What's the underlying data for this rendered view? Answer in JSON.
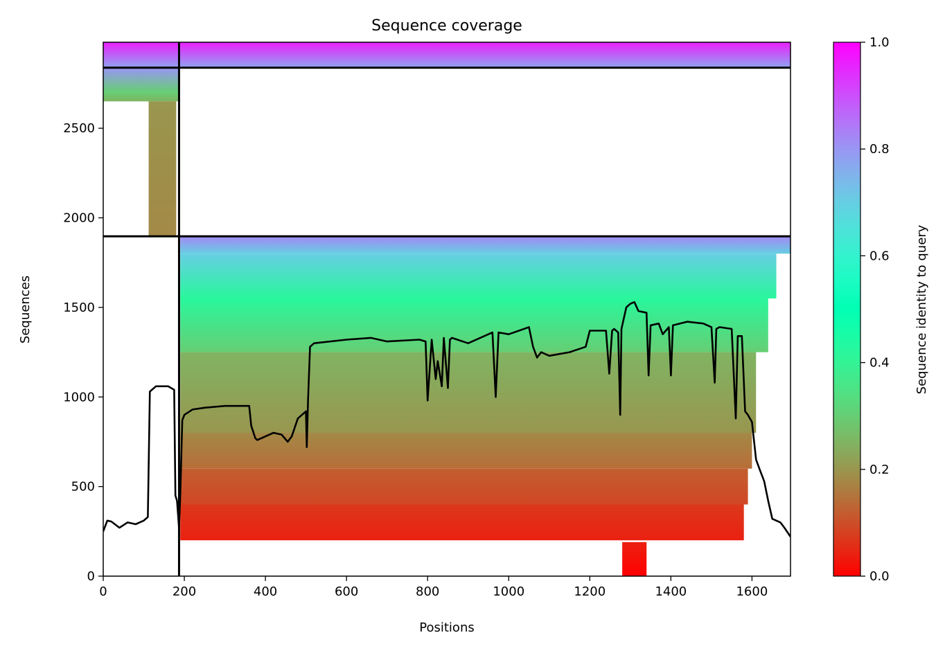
{
  "chart_data": {
    "type": "heatmap",
    "title": "Sequence coverage",
    "xlabel": "Positions",
    "ylabel": "Sequences",
    "xlim": [
      0,
      1695
    ],
    "ylim": [
      0,
      2980
    ],
    "x_ticks": [
      0,
      200,
      400,
      600,
      800,
      1000,
      1200,
      1400,
      1600
    ],
    "y_ticks": [
      0,
      500,
      1000,
      1500,
      2000,
      2500
    ],
    "colorbar": {
      "label": "Sequence identity to query",
      "range": [
        0,
        1
      ],
      "ticks": [
        0.0,
        0.2,
        0.4,
        0.6,
        0.8,
        1.0
      ],
      "colormap": "rainbow_r",
      "colors": [
        "#ff0000",
        "#ff8040",
        "#c0ff80",
        "#40ffbf",
        "#00b3f3",
        "#8000ff"
      ]
    },
    "chain_boundaries": {
      "vertical_x": [
        187
      ],
      "horizontal_y": [
        1897,
        2838
      ]
    },
    "coverage_blocks": [
      {
        "x0": 0,
        "x1": 1695,
        "y0": 2838,
        "y1": 2980,
        "identity_top": 0.96,
        "identity_bottom": 0.78
      },
      {
        "x0": 0,
        "x1": 187,
        "y0": 2700,
        "y1": 2838,
        "identity_top": 0.8,
        "identity_bottom": 0.3
      },
      {
        "x0": 0,
        "x1": 187,
        "y0": 2650,
        "y1": 2700,
        "identity_top": 0.3,
        "identity_bottom": 0.25
      },
      {
        "x0": 112,
        "x1": 180,
        "y0": 1897,
        "y1": 2650,
        "identity_top": 0.2,
        "identity_bottom": 0.18
      },
      {
        "x0": 190,
        "x1": 1695,
        "y0": 1800,
        "y1": 1897,
        "identity_top": 0.82,
        "identity_bottom": 0.7
      },
      {
        "x0": 190,
        "x1": 1660,
        "y0": 1550,
        "y1": 1800,
        "identity_top": 0.7,
        "identity_bottom": 0.42
      },
      {
        "x0": 190,
        "x1": 1640,
        "y0": 1250,
        "y1": 1550,
        "identity_top": 0.42,
        "identity_bottom": 0.3
      },
      {
        "x0": 190,
        "x1": 1610,
        "y0": 800,
        "y1": 1250,
        "identity_top": 0.25,
        "identity_bottom": 0.2
      },
      {
        "x0": 190,
        "x1": 1600,
        "y0": 600,
        "y1": 800,
        "identity_top": 0.18,
        "identity_bottom": 0.14
      },
      {
        "x0": 190,
        "x1": 1590,
        "y0": 400,
        "y1": 600,
        "identity_top": 0.12,
        "identity_bottom": 0.09
      },
      {
        "x0": 190,
        "x1": 1580,
        "y0": 200,
        "y1": 400,
        "identity_top": 0.07,
        "identity_bottom": 0.04
      },
      {
        "x0": 1280,
        "x1": 1340,
        "y0": 0,
        "y1": 190,
        "identity_top": 0.04,
        "identity_bottom": 0.0
      }
    ],
    "coverage_line": {
      "x": [
        0,
        10,
        20,
        40,
        60,
        80,
        100,
        110,
        115,
        130,
        160,
        175,
        178,
        182,
        187,
        190,
        195,
        200,
        220,
        250,
        300,
        360,
        365,
        375,
        380,
        400,
        420,
        440,
        455,
        465,
        480,
        500,
        502,
        505,
        510,
        520,
        600,
        660,
        700,
        780,
        795,
        800,
        810,
        820,
        825,
        835,
        840,
        850,
        855,
        860,
        900,
        960,
        968,
        975,
        1000,
        1050,
        1060,
        1070,
        1080,
        1100,
        1150,
        1190,
        1200,
        1240,
        1248,
        1255,
        1260,
        1270,
        1275,
        1278,
        1290,
        1300,
        1310,
        1320,
        1340,
        1345,
        1350,
        1370,
        1380,
        1395,
        1400,
        1405,
        1440,
        1480,
        1500,
        1508,
        1512,
        1520,
        1550,
        1560,
        1565,
        1575,
        1583,
        1590,
        1600,
        1610,
        1620,
        1630,
        1640,
        1650,
        1660,
        1670,
        1680,
        1695
      ],
      "y": [
        250,
        310,
        305,
        270,
        300,
        290,
        310,
        330,
        1030,
        1060,
        1060,
        1040,
        450,
        420,
        270,
        450,
        870,
        900,
        930,
        940,
        950,
        950,
        840,
        770,
        760,
        780,
        800,
        790,
        750,
        780,
        880,
        920,
        720,
        980,
        1280,
        1300,
        1320,
        1330,
        1310,
        1320,
        1310,
        980,
        1320,
        1100,
        1200,
        1060,
        1330,
        1050,
        1320,
        1330,
        1300,
        1360,
        1000,
        1360,
        1350,
        1390,
        1280,
        1220,
        1250,
        1230,
        1250,
        1280,
        1370,
        1370,
        1130,
        1370,
        1380,
        1360,
        900,
        1380,
        1500,
        1520,
        1530,
        1480,
        1470,
        1120,
        1400,
        1410,
        1350,
        1390,
        1120,
        1400,
        1420,
        1410,
        1390,
        1080,
        1380,
        1390,
        1380,
        880,
        1340,
        1340,
        920,
        900,
        860,
        650,
        590,
        530,
        420,
        320,
        310,
        300,
        270,
        220
      ]
    }
  }
}
